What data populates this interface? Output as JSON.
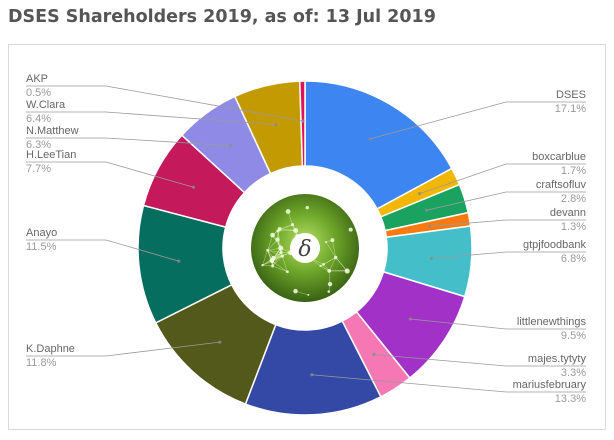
{
  "title": "DSES Shareholders 2019, as of: 13 Jul 2019",
  "center_logo": {
    "symbol": "δ",
    "background_color": "#4f7d1e",
    "ring_color": "#ffffff"
  },
  "chart_data": {
    "type": "pie",
    "title": "DSES Shareholders 2019, as of: 13 Jul 2019",
    "legend": "none",
    "slices": [
      {
        "label": "DSES",
        "pct_label": "17.1%",
        "value": 17.1,
        "color": "#3d85f0"
      },
      {
        "label": "boxcarblue",
        "pct_label": "1.7%",
        "value": 1.7,
        "color": "#f2b705"
      },
      {
        "label": "craftsofluv",
        "pct_label": "2.8%",
        "value": 2.8,
        "color": "#1aa260"
      },
      {
        "label": "devann",
        "pct_label": "1.3%",
        "value": 1.3,
        "color": "#fa7a12"
      },
      {
        "label": "gtpjfoodbank",
        "pct_label": "6.8%",
        "value": 6.8,
        "color": "#44bfc9"
      },
      {
        "label": "littlenewthings",
        "pct_label": "9.5%",
        "value": 9.5,
        "color": "#a231c8"
      },
      {
        "label": "majes.tytyty",
        "pct_label": "3.3%",
        "value": 3.3,
        "color": "#f577b4"
      },
      {
        "label": "mariusfebruary",
        "pct_label": "13.3%",
        "value": 13.3,
        "color": "#3349a5"
      },
      {
        "label": "K.Daphne",
        "pct_label": "11.8%",
        "value": 11.8,
        "color": "#53581b"
      },
      {
        "label": "Anayo",
        "pct_label": "11.5%",
        "value": 11.5,
        "color": "#066e5e"
      },
      {
        "label": "H.LeeTian",
        "pct_label": "7.7%",
        "value": 7.7,
        "color": "#c4195b"
      },
      {
        "label": "N.Matthew",
        "pct_label": "6.3%",
        "value": 6.3,
        "color": "#8e8ae6"
      },
      {
        "label": "W.Clara",
        "pct_label": "6.4%",
        "value": 6.4,
        "color": "#c49a03"
      },
      {
        "label": "AKP",
        "pct_label": "0.5%",
        "value": 0.5,
        "color": "#e0135a"
      }
    ]
  }
}
